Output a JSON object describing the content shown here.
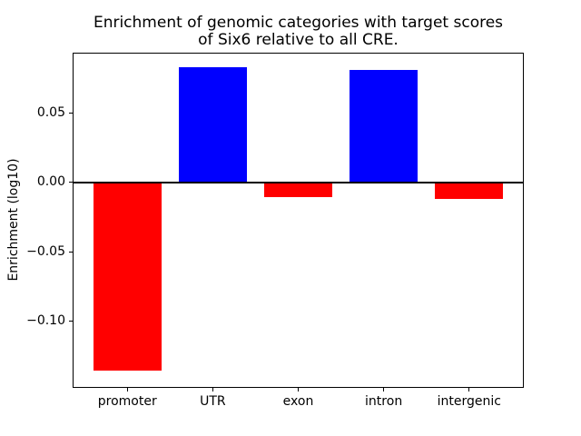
{
  "chart_data": {
    "type": "bar",
    "title": "Enrichment of genomic categories with target scores of Six6 relative to all CRE.",
    "title_lines": [
      "Enrichment of genomic categories with target scores",
      "of Six6 relative to all CRE."
    ],
    "ylabel": "Enrichment (log10)",
    "xlabel": "",
    "categories": [
      "promoter",
      "UTR",
      "exon",
      "intron",
      "intergenic"
    ],
    "values": [
      -0.1358,
      0.0826,
      -0.0105,
      0.0811,
      -0.0122
    ],
    "bar_colors": [
      "#ff0000",
      "#0000ff",
      "#ff0000",
      "#0000ff",
      "#ff0000"
    ],
    "positive_color": "#0000ff",
    "negative_color": "#ff0000",
    "axis_color": "#000000",
    "ylim": [
      -0.1478,
      0.0937
    ],
    "xlim": [
      -0.64,
      4.64
    ],
    "bar_width_fraction": 0.8,
    "yticks": [
      {
        "value": 0.05,
        "label": "0.05"
      },
      {
        "value": 0.0,
        "label": "0.00"
      },
      {
        "value": -0.05,
        "label": "−0.05"
      },
      {
        "value": -0.1,
        "label": "−0.10"
      }
    ],
    "zero_line": {
      "value": 0.0,
      "color": "#000000"
    },
    "grid": false,
    "legend": null
  }
}
